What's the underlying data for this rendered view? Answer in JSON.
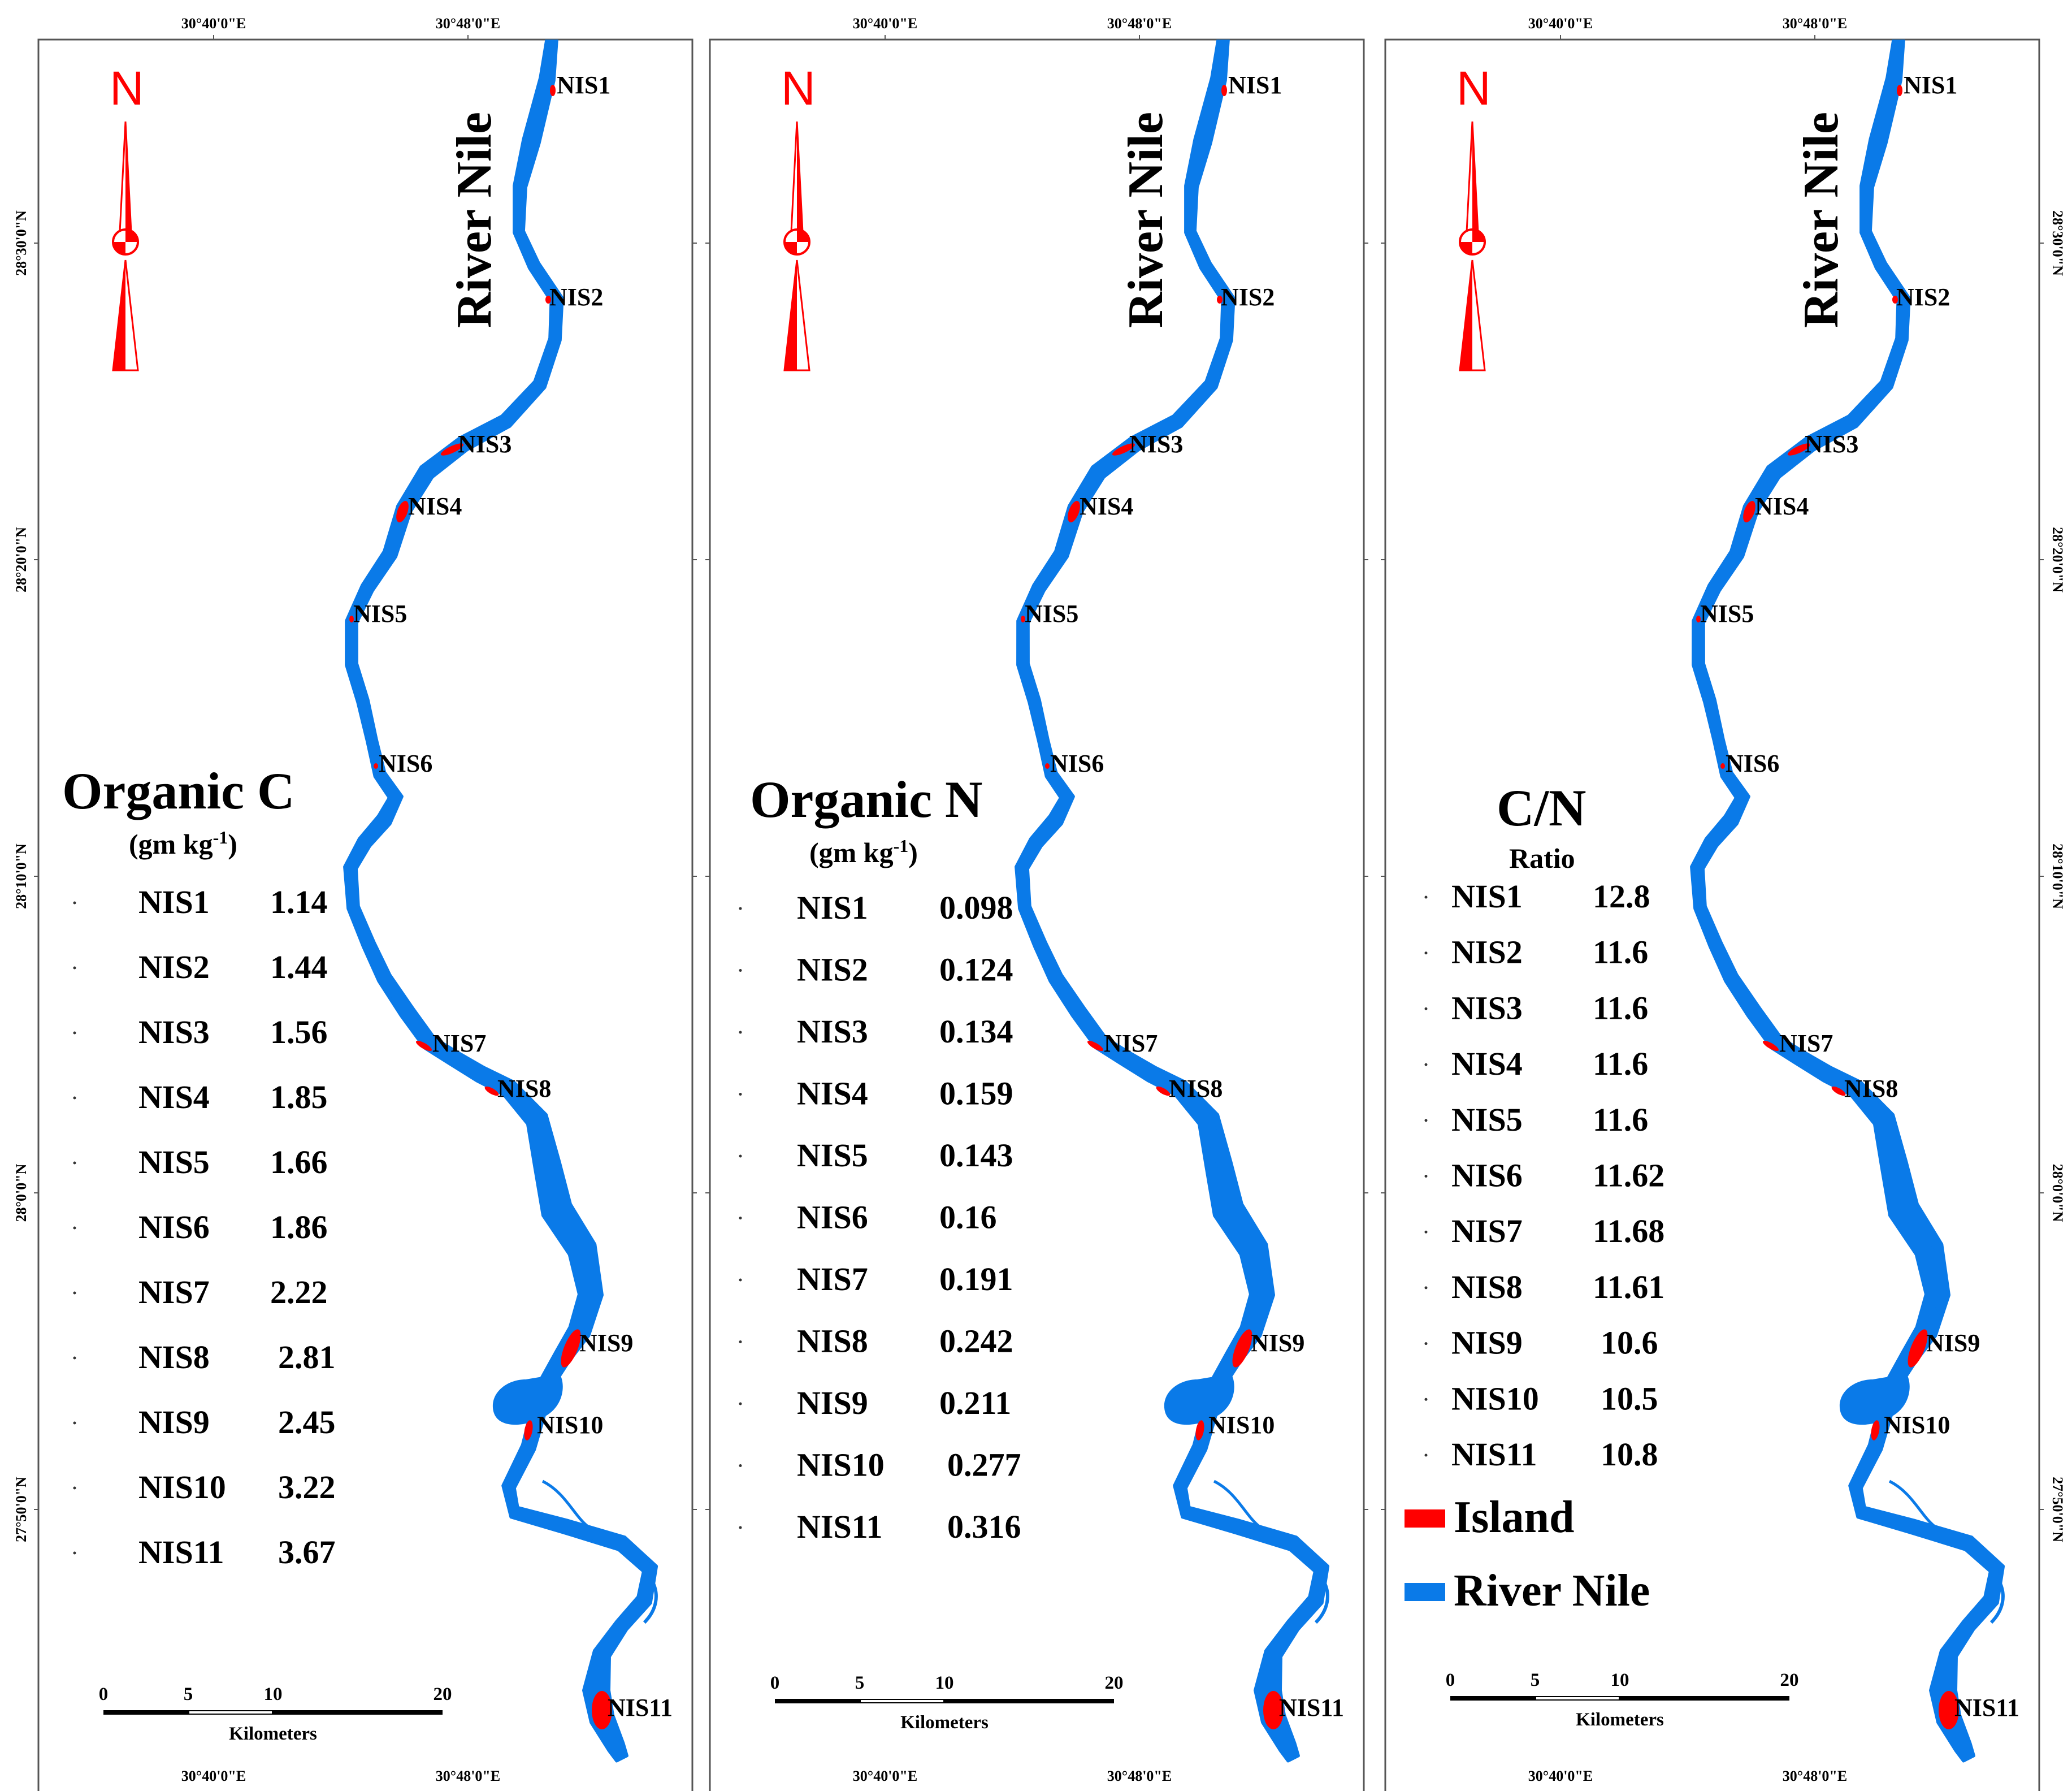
{
  "map": {
    "x_ticks": [
      "30°40'0\"E",
      "30°48'0\"E"
    ],
    "y_ticks": [
      "28°30'0\"N",
      "28°20'0\"N",
      "28°10'0\"N",
      "28°0'0\"N",
      "27°50'0\"N"
    ],
    "north_label": "N",
    "river_label": "River Nile",
    "island_labels": [
      "NIS1",
      "NIS2",
      "NIS3",
      "NIS4",
      "NIS5",
      "NIS6",
      "NIS7",
      "NIS8",
      "NIS9",
      "NIS10",
      "NIS11"
    ],
    "scale": {
      "ticks": [
        "0",
        "5",
        "10",
        "20"
      ],
      "unit": "Kilometers"
    },
    "colors": {
      "river": "#0a7ae8",
      "island": "#ff0000",
      "frame": "#555555"
    }
  },
  "panels": [
    {
      "title": "Organic C",
      "unit": "(gm kg",
      "unit_sup": "-1",
      "unit_close": ")",
      "rows": [
        {
          "site": "NIS1",
          "value": "1.14"
        },
        {
          "site": "NIS2",
          "value": "1.44"
        },
        {
          "site": "NIS3",
          "value": "1.56"
        },
        {
          "site": "NIS4",
          "value": "1.85"
        },
        {
          "site": "NIS5",
          "value": "1.66"
        },
        {
          "site": "NIS6",
          "value": "1.86"
        },
        {
          "site": "NIS7",
          "value": "2.22"
        },
        {
          "site": "NIS8",
          "value": "2.81"
        },
        {
          "site": "NIS9",
          "value": "2.45"
        },
        {
          "site": "NIS10",
          "value": "3.22"
        },
        {
          "site": "NIS11",
          "value": "3.67"
        }
      ]
    },
    {
      "title": "Organic N",
      "unit": "(gm kg",
      "unit_sup": "-1",
      "unit_close": ")",
      "rows": [
        {
          "site": "NIS1",
          "value": "0.098"
        },
        {
          "site": "NIS2",
          "value": "0.124"
        },
        {
          "site": "NIS3",
          "value": "0.134"
        },
        {
          "site": "NIS4",
          "value": "0.159"
        },
        {
          "site": "NIS5",
          "value": "0.143"
        },
        {
          "site": "NIS6",
          "value": "0.16"
        },
        {
          "site": "NIS7",
          "value": "0.191"
        },
        {
          "site": "NIS8",
          "value": "0.242"
        },
        {
          "site": "NIS9",
          "value": "0.211"
        },
        {
          "site": "NIS10",
          "value": "0.277"
        },
        {
          "site": "NIS11",
          "value": "0.316"
        }
      ]
    },
    {
      "title": "C/N",
      "unit": "Ratio",
      "unit_sup": "",
      "unit_close": "",
      "rows": [
        {
          "site": "NIS1",
          "value": "12.8"
        },
        {
          "site": "NIS2",
          "value": "11.6"
        },
        {
          "site": "NIS3",
          "value": "11.6"
        },
        {
          "site": "NIS4",
          "value": "11.6"
        },
        {
          "site": "NIS5",
          "value": "11.6"
        },
        {
          "site": "NIS6",
          "value": "11.62"
        },
        {
          "site": "NIS7",
          "value": "11.68"
        },
        {
          "site": "NIS8",
          "value": "11.61"
        },
        {
          "site": "NIS9",
          "value": "10.6"
        },
        {
          "site": "NIS10",
          "value": "10.5"
        },
        {
          "site": "NIS11",
          "value": "10.8"
        }
      ]
    }
  ],
  "legend": {
    "items": [
      {
        "label": "Island",
        "color": "#ff0000"
      },
      {
        "label": "River Nile",
        "color": "#0a7ae8"
      }
    ]
  }
}
